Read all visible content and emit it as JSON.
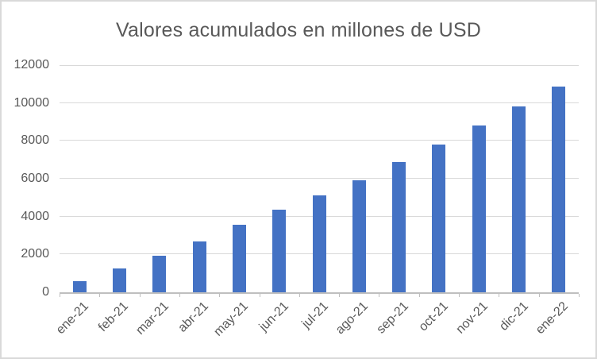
{
  "chart_data": {
    "type": "bar",
    "title": "Valores acumulados en millones de USD",
    "categories": [
      "ene-21",
      "feb-21",
      "mar-21",
      "abr-21",
      "may-21",
      "jun-21",
      "jul-21",
      "ago-21",
      "sep-21",
      "oct-21",
      "nov-21",
      "dic-21",
      "ene-22"
    ],
    "values": [
      600,
      1250,
      1950,
      2700,
      3550,
      4350,
      5100,
      5900,
      6900,
      7800,
      8800,
      9800,
      10850
    ],
    "xlabel": "",
    "ylabel": "",
    "ylim": [
      0,
      12000
    ],
    "yticks": [
      0,
      2000,
      4000,
      6000,
      8000,
      10000,
      12000
    ],
    "grid": true,
    "legend": false,
    "x_tick_rotation_deg": 45
  },
  "colors": {
    "bar": "#4472C4",
    "gridline": "#D9D9D9",
    "axis_line": "#BFBFBF",
    "text": "#595959",
    "chart_border": "#D9D9D9",
    "background": "#FFFFFF"
  }
}
